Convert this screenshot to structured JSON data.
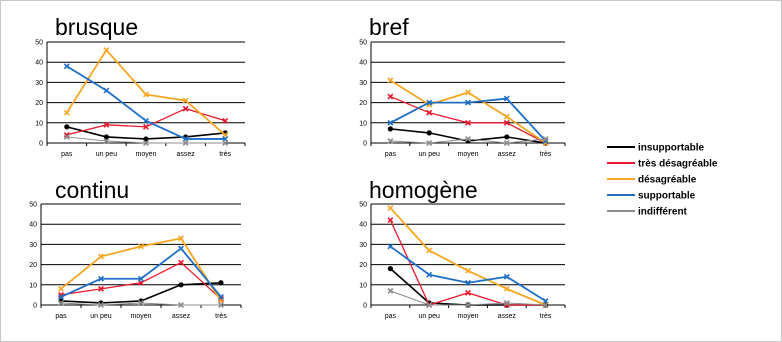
{
  "chart_data": [
    {
      "type": "line",
      "title": "brusque",
      "categories": [
        "pas",
        "un peu",
        "moyen",
        "assez",
        "très"
      ],
      "ylim": [
        0,
        50
      ],
      "yticks": [
        "0",
        "10",
        "20",
        "30",
        "40",
        "50"
      ],
      "grid": true,
      "series": [
        {
          "name": "insupportable",
          "values": [
            8,
            3,
            2,
            3,
            5
          ]
        },
        {
          "name": "très désagréable",
          "values": [
            4,
            9,
            8,
            17,
            11
          ]
        },
        {
          "name": "désagréable",
          "values": [
            15,
            46,
            24,
            21,
            4
          ]
        },
        {
          "name": "supportable",
          "values": [
            38,
            26,
            11,
            2,
            2
          ]
        },
        {
          "name": "indifférent",
          "values": [
            3,
            1,
            0,
            0,
            0
          ]
        }
      ]
    },
    {
      "type": "line",
      "title": "bref",
      "categories": [
        "pas",
        "un peu",
        "moyen",
        "assez",
        "très"
      ],
      "ylim": [
        0,
        50
      ],
      "yticks": [
        "0",
        "10",
        "20",
        "30",
        "40",
        "50"
      ],
      "grid": true,
      "series": [
        {
          "name": "insupportable",
          "values": [
            7,
            5,
            1,
            3,
            0
          ]
        },
        {
          "name": "très désagréable",
          "values": [
            23,
            15,
            10,
            10,
            0
          ]
        },
        {
          "name": "désagréable",
          "values": [
            31,
            19,
            25,
            13,
            0
          ]
        },
        {
          "name": "supportable",
          "values": [
            10,
            20,
            20,
            22,
            1
          ]
        },
        {
          "name": "indifférent",
          "values": [
            1,
            0,
            2,
            0,
            2
          ]
        }
      ]
    },
    {
      "type": "line",
      "title": "continu",
      "categories": [
        "pas",
        "un peu",
        "moyen",
        "assez",
        "très"
      ],
      "ylim": [
        0,
        50
      ],
      "yticks": [
        "0",
        "10",
        "20",
        "30",
        "40",
        "50"
      ],
      "grid": true,
      "series": [
        {
          "name": "insupportable",
          "values": [
            2,
            1,
            2,
            10,
            11
          ]
        },
        {
          "name": "très désagréable",
          "values": [
            5,
            8,
            11,
            21,
            3
          ]
        },
        {
          "name": "désagréable",
          "values": [
            8,
            24,
            29,
            33,
            2
          ]
        },
        {
          "name": "supportable",
          "values": [
            4,
            13,
            13,
            28,
            4
          ]
        },
        {
          "name": "indifférent",
          "values": [
            1,
            0,
            1,
            0,
            0
          ]
        }
      ]
    },
    {
      "type": "line",
      "title": "homogène",
      "categories": [
        "pas",
        "un peu",
        "moyen",
        "assez",
        "très"
      ],
      "ylim": [
        0,
        50
      ],
      "yticks": [
        "0",
        "10",
        "20",
        "30",
        "40",
        "50"
      ],
      "grid": true,
      "series": [
        {
          "name": "insupportable",
          "values": [
            18,
            1,
            0,
            0,
            0
          ]
        },
        {
          "name": "très désagréable",
          "values": [
            42,
            0,
            6,
            0,
            0
          ]
        },
        {
          "name": "désagréable",
          "values": [
            48,
            27,
            17,
            8,
            0
          ]
        },
        {
          "name": "supportable",
          "values": [
            29,
            15,
            11,
            14,
            2
          ]
        },
        {
          "name": "indifférent",
          "values": [
            7,
            0,
            0,
            1,
            0
          ]
        }
      ]
    }
  ],
  "legend": {
    "placement": "right",
    "items": [
      {
        "label": "insupportable",
        "color": "#000000"
      },
      {
        "label": "très désagréable",
        "color": "#e8192c"
      },
      {
        "label": "désagréable",
        "color": "#f5a623"
      },
      {
        "label": "supportable",
        "color": "#1f6fc5"
      },
      {
        "label": "indifférent",
        "color": "#8c8c8c"
      }
    ]
  }
}
